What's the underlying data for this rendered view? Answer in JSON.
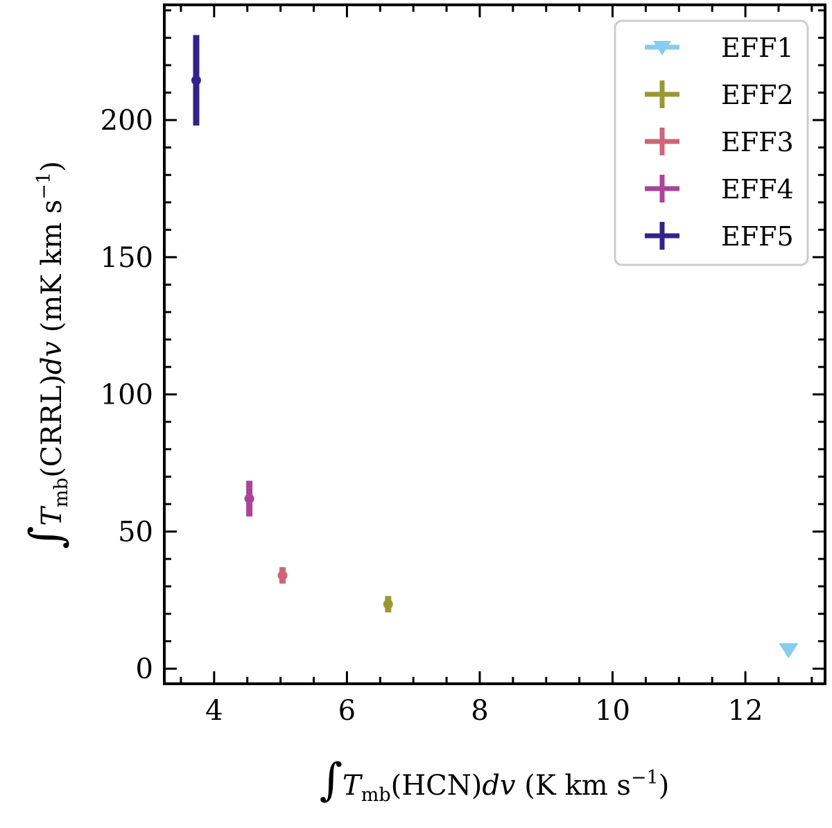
{
  "chart_data": {
    "type": "scatter",
    "title": "",
    "xlabel": {
      "integral": "∫",
      "main": "T",
      "subscript": "mb",
      "middle": "(HCN)",
      "dv": "dv",
      "unit": "(K km s",
      "exponent": "−1",
      "close": ")"
    },
    "ylabel": {
      "integral": "∫",
      "main": "T",
      "subscript": "mb",
      "middle": "(CRRL)",
      "dv": "dv",
      "unit": "(mK km s",
      "exponent": "−1",
      "close": ")"
    },
    "xlim": [
      3.25,
      13.2
    ],
    "ylim": [
      -5.5,
      242
    ],
    "xticks": [
      4,
      6,
      8,
      10,
      12
    ],
    "xtick_labels": [
      "4",
      "6",
      "8",
      "10",
      "12"
    ],
    "yticks": [
      0,
      50,
      100,
      150,
      200
    ],
    "ytick_labels": [
      "0",
      "50",
      "100",
      "150",
      "200"
    ],
    "grid": false,
    "legend_position": "top-right",
    "series": [
      {
        "name": "EFF1",
        "color": "#88ccee",
        "marker": "triangle-down",
        "upper_limit": true,
        "x": 12.65,
        "y": 6.5,
        "yerr": 0
      },
      {
        "name": "EFF2",
        "color": "#999933",
        "marker": "circle",
        "upper_limit": false,
        "x": 6.62,
        "y": 23.5,
        "yerr": 3
      },
      {
        "name": "EFF3",
        "color": "#cc6677",
        "marker": "circle",
        "upper_limit": false,
        "x": 5.03,
        "y": 34,
        "yerr": 3
      },
      {
        "name": "EFF4",
        "color": "#aa4499",
        "marker": "circle",
        "upper_limit": false,
        "x": 4.53,
        "y": 62,
        "yerr": 6.5
      },
      {
        "name": "EFF5",
        "color": "#332288",
        "marker": "circle",
        "upper_limit": false,
        "x": 3.73,
        "y": 214.5,
        "yerr": 16.5
      }
    ]
  }
}
